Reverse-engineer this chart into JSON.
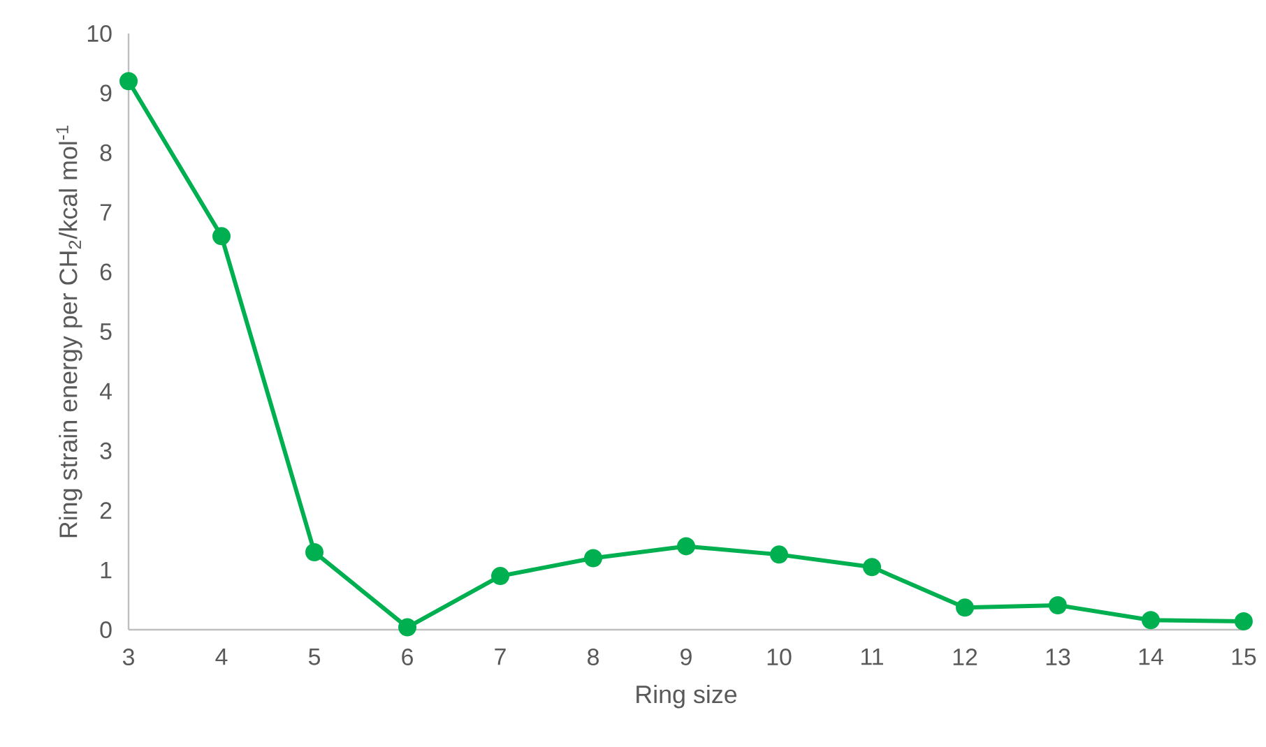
{
  "chart_data": {
    "type": "line",
    "xlabel": "Ring size",
    "ylabel": "Ring strain energy per CH$_{2}$/kcal mol$^{-1}$",
    "categories": [
      "3",
      "4",
      "5",
      "6",
      "7",
      "8",
      "9",
      "10",
      "11",
      "12",
      "13",
      "14",
      "15"
    ],
    "values": [
      9.2,
      6.6,
      1.3,
      0.04,
      0.9,
      1.2,
      1.4,
      1.26,
      1.05,
      0.37,
      0.41,
      0.16,
      0.14
    ],
    "color": "#00b050",
    "marker": "circle",
    "line_style": "solid",
    "grid": false,
    "ylim": [
      0,
      10
    ],
    "yticks": [
      0,
      1,
      2,
      3,
      4,
      5,
      6,
      7,
      8,
      9,
      10
    ]
  }
}
